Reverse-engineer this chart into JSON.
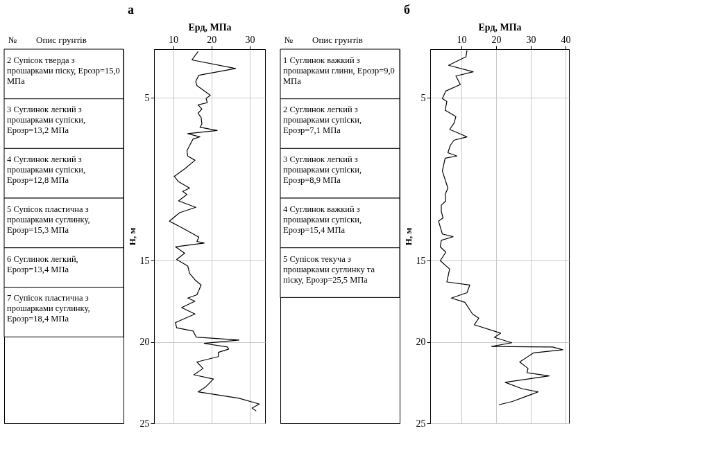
{
  "chart_data": [
    {
      "type": "line",
      "title": "а",
      "xlabel": "Eрд, МПа",
      "ylabel": "Н, м",
      "orientation": "horizontal",
      "color": "#000000",
      "grid": true,
      "xlim": [
        5,
        34
      ],
      "xticks": [
        10,
        20,
        30
      ],
      "ylim": [
        25,
        2
      ],
      "yticks": [
        5,
        15,
        20,
        25
      ],
      "x": [
        2.14,
        2.66,
        3.19,
        3.6,
        3.98,
        4.24,
        4.83,
        5.03,
        5.29,
        5.42,
        5.68,
        5.94,
        6.2,
        6.6,
        6.8,
        7.0,
        7.19,
        7.39,
        7.52,
        7.78,
        8.24,
        8.57,
        8.83,
        9.36,
        9.82,
        10.15,
        10.54,
        10.74,
        10.93,
        11.33,
        11.72,
        12.05,
        12.57,
        13.03,
        13.55,
        13.82,
        13.92,
        14.15,
        14.54,
        14.93,
        15.33,
        15.79,
        16.18,
        16.5,
        17.1,
        17.3,
        17.49,
        17.89,
        18.28,
        18.81,
        19.13,
        19.33,
        19.7,
        19.88,
        20.09,
        20.31,
        20.44,
        20.64,
        20.9,
        21.23,
        21.63,
        22.02,
        22.28,
        22.74,
        23.07,
        23.46,
        23.82,
        24.06,
        24.25
      ],
      "values": [
        16.5,
        14.9,
        26.3,
        16.7,
        15.9,
        16.2,
        19.7,
        18.6,
        18.9,
        16.5,
        17.5,
        16.5,
        17.3,
        17.5,
        17.0,
        21.5,
        13.8,
        17.0,
        15.2,
        14.6,
        13.6,
        13.8,
        15.7,
        13.0,
        10.3,
        11.4,
        14.3,
        12.5,
        13.6,
        11.4,
        15.9,
        11.7,
        9.0,
        12.7,
        16.7,
        16.2,
        18.1,
        10.6,
        13.0,
        10.9,
        13.8,
        14.3,
        15.7,
        17.3,
        16.2,
        13.8,
        15.7,
        12.2,
        15.7,
        10.6,
        10.9,
        15.2,
        16.0,
        27.2,
        18.1,
        24.2,
        24.5,
        21.8,
        21.8,
        16.2,
        17.8,
        15.4,
        20.5,
        18.6,
        16.5,
        27.2,
        32.5,
        30.6,
        31.7
      ],
      "annotations": [
        "№",
        "Опис грунтів",
        "2 Супісок тверда з прошарками піску, Eрозр=15,0 МПа",
        "3 Суглинок легкий з прошарками супіски, Eрозр=13,2 МПа",
        "4 Суглинок легкий з прошарками супіски, Eрозр=12,8 МПа",
        "5 Супісок пластична з прошарками суглинку, Eрозр=15,3 МПа",
        "6 Суглинок легкий, Eрозр=13,4 МПа",
        "7 Супісок пластична з прошарками суглинку, Eрозр=18,4 МПа"
      ]
    },
    {
      "type": "line",
      "title": "б",
      "xlabel": "Eрд, МПа",
      "ylabel": "Н, м",
      "orientation": "horizontal",
      "color": "#000000",
      "grid": true,
      "xlim": [
        1,
        41
      ],
      "xticks": [
        10,
        20,
        30,
        40
      ],
      "ylim": [
        25,
        2
      ],
      "yticks": [
        5,
        15,
        20,
        25
      ],
      "x": [
        2.07,
        2.47,
        2.99,
        3.39,
        3.65,
        3.85,
        4.17,
        4.57,
        5.03,
        5.22,
        5.75,
        6.14,
        6.54,
        6.93,
        7.39,
        7.59,
        7.91,
        8.37,
        8.57,
        8.7,
        9.49,
        10.54,
        10.93,
        11.33,
        11.59,
        11.98,
        12.37,
        12.57,
        13.36,
        13.53,
        13.75,
        14.15,
        14.48,
        15.0,
        15.52,
        16.31,
        16.5,
        16.97,
        17.3,
        17.56,
        18.28,
        18.54,
        18.94,
        19.46,
        19.72,
        20.05,
        20.28,
        20.31,
        20.48,
        20.67,
        21.23,
        21.63,
        21.89,
        22.09,
        22.48,
        22.87,
        23.07,
        23.66,
        23.86
      ],
      "values": [
        11.6,
        11.3,
        6.3,
        13.4,
        8.4,
        8.9,
        9.7,
        5.5,
        4.5,
        5.8,
        5.3,
        8.4,
        7.9,
        6.6,
        11.6,
        7.9,
        6.8,
        6.1,
        8.7,
        5.3,
        4.5,
        6.1,
        5.3,
        5.5,
        4.2,
        4.2,
        4.7,
        3.4,
        4.5,
        7.6,
        4.2,
        3.9,
        5.5,
        3.9,
        6.6,
        5.8,
        12.4,
        11.6,
        7.1,
        11.0,
        13.2,
        15.0,
        13.7,
        21.3,
        19.5,
        24.5,
        18.7,
        36.3,
        39.2,
        30.8,
        26.8,
        29.2,
        28.9,
        35.3,
        22.6,
        27.4,
        32.1,
        24.7,
        20.8
      ],
      "annotations": [
        "№",
        "Опис грунтів",
        "1 Суглинок важкий з прошарками глини, Eрозр=9,0 МПа",
        "2 Суглинок легкий з прошарками супіски, Eрозр=7,1 МПа",
        "3 Суглинок легкий з прошарками супіски, Eрозр=8,9 МПа",
        "4 Суглинок важкий з прошарками супіски, Eрозр=15,4 МПа",
        "5 Супісок текуча з прошарками суглинку та піску, Eрозр=25,5 МПа"
      ]
    }
  ]
}
